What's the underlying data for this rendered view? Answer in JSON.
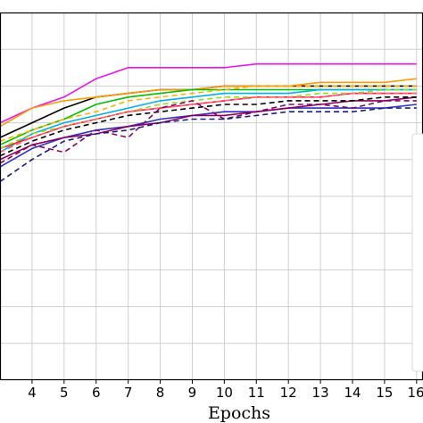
{
  "chart_data": {
    "type": "line",
    "xlabel": "Epochs",
    "ylabel": "",
    "title": "",
    "x_ticks": [
      4,
      5,
      6,
      7,
      8,
      9,
      10,
      11,
      12,
      13,
      14,
      15,
      16
    ],
    "xlim": [
      3,
      16.2
    ],
    "ylim": [
      0,
      1
    ],
    "grid": true,
    "x": [
      3,
      4,
      5,
      6,
      7,
      8,
      9,
      10,
      11,
      12,
      13,
      14,
      15,
      16
    ],
    "series": [
      {
        "color": "#e815e8",
        "dash": false,
        "values": [
          0.7,
          0.74,
          0.77,
          0.82,
          0.85,
          0.85,
          0.85,
          0.85,
          0.86,
          0.86,
          0.86,
          0.86,
          0.86,
          0.86
        ]
      },
      {
        "color": "#000000",
        "dash": false,
        "values": [
          0.66,
          0.7,
          0.74,
          0.77,
          0.78,
          0.79,
          0.79,
          0.8,
          0.8,
          0.8,
          0.8,
          0.8,
          0.8,
          0.8
        ]
      },
      {
        "color": "#ff9a00",
        "dash": false,
        "values": [
          0.69,
          0.74,
          0.76,
          0.77,
          0.78,
          0.79,
          0.79,
          0.8,
          0.8,
          0.8,
          0.81,
          0.81,
          0.81,
          0.82
        ]
      },
      {
        "color": "#00c000",
        "dash": false,
        "values": [
          0.64,
          0.68,
          0.71,
          0.75,
          0.77,
          0.78,
          0.79,
          0.79,
          0.79,
          0.79,
          0.79,
          0.79,
          0.79,
          0.79
        ]
      },
      {
        "color": "#00b0e8",
        "dash": false,
        "values": [
          0.62,
          0.67,
          0.7,
          0.72,
          0.74,
          0.76,
          0.77,
          0.78,
          0.78,
          0.78,
          0.79,
          0.79,
          0.79,
          0.79
        ]
      },
      {
        "color": "#ff2020",
        "dash": false,
        "values": [
          0.63,
          0.66,
          0.69,
          0.71,
          0.73,
          0.74,
          0.75,
          0.76,
          0.77,
          0.77,
          0.77,
          0.78,
          0.78,
          0.78
        ]
      },
      {
        "color": "#3030c0",
        "dash": false,
        "values": [
          0.58,
          0.63,
          0.66,
          0.68,
          0.69,
          0.71,
          0.72,
          0.73,
          0.73,
          0.74,
          0.74,
          0.74,
          0.74,
          0.75
        ]
      },
      {
        "color": "#8a0060",
        "dash": false,
        "values": [
          0.6,
          0.64,
          0.66,
          0.67,
          0.69,
          0.7,
          0.72,
          0.72,
          0.73,
          0.74,
          0.75,
          0.76,
          0.76,
          0.77
        ]
      },
      {
        "color": "#90e020",
        "dash": true,
        "values": [
          0.63,
          0.67,
          0.69,
          0.71,
          0.73,
          0.75,
          0.76,
          0.77,
          0.77,
          0.77,
          0.78,
          0.78,
          0.79,
          0.79
        ]
      },
      {
        "color": "#ffb000",
        "dash": true,
        "values": [
          0.65,
          0.68,
          0.71,
          0.73,
          0.76,
          0.77,
          0.78,
          0.79,
          0.8,
          0.8,
          0.8,
          0.8,
          0.8,
          0.8
        ]
      },
      {
        "color": "#ff6090",
        "dash": true,
        "values": [
          0.62,
          0.66,
          0.69,
          0.71,
          0.73,
          0.74,
          0.75,
          0.76,
          0.77,
          0.77,
          0.77,
          0.78,
          0.78,
          0.78
        ]
      },
      {
        "color": "#000000",
        "dash": true,
        "values": [
          0.61,
          0.65,
          0.68,
          0.7,
          0.72,
          0.73,
          0.74,
          0.75,
          0.75,
          0.76,
          0.76,
          0.76,
          0.77,
          0.77
        ]
      },
      {
        "color": "#8a0060",
        "dash": true,
        "values": [
          0.59,
          0.64,
          0.62,
          0.68,
          0.66,
          0.74,
          0.76,
          0.71,
          0.73,
          0.75,
          0.75,
          0.74,
          0.76,
          0.76
        ]
      },
      {
        "color": "#1a1a8a",
        "dash": true,
        "values": [
          0.54,
          0.6,
          0.65,
          0.67,
          0.68,
          0.7,
          0.71,
          0.71,
          0.72,
          0.73,
          0.73,
          0.73,
          0.74,
          0.74
        ]
      }
    ]
  }
}
